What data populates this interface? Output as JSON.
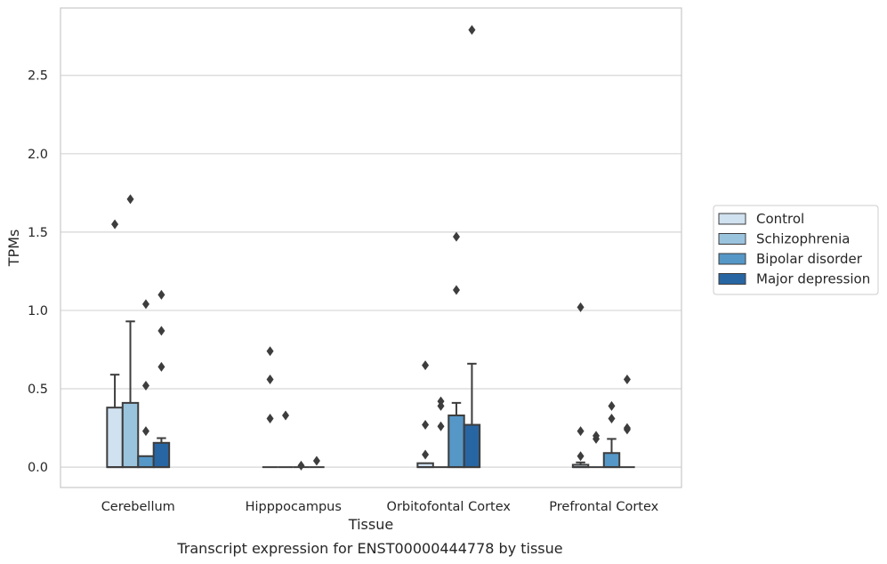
{
  "caption": "Transcript expression for ENST00000444778 by tissue",
  "chart_data": {
    "type": "box",
    "title": "",
    "xlabel": "Tissue",
    "ylabel": "TPMs",
    "ylim": [
      -0.13,
      2.93
    ],
    "yticks": [
      "0.0",
      "0.5",
      "1.0",
      "1.5",
      "2.0",
      "2.5"
    ],
    "ytick_values": [
      0.0,
      0.5,
      1.0,
      1.5,
      2.0,
      2.5
    ],
    "grid": "horizontal",
    "legend_position": "right",
    "categories": [
      "Cerebellum",
      "Hipppocampus",
      "Orbitofontal Cortex",
      "Prefrontal Cortex"
    ],
    "series": [
      {
        "name": "Control",
        "color": "#d0e1f0",
        "boxes": [
          {
            "q1": 0.0,
            "median": 0.0,
            "q3": 0.38,
            "whisker_low": 0.0,
            "whisker_high": 0.59,
            "outliers": [
              1.55
            ]
          },
          {
            "q1": 0.0,
            "median": 0.0,
            "q3": 0.0,
            "whisker_low": 0.0,
            "whisker_high": 0.0,
            "outliers": [
              0.31,
              0.56,
              0.74
            ]
          },
          {
            "q1": 0.0,
            "median": 0.0,
            "q3": 0.025,
            "whisker_low": 0.0,
            "whisker_high": 0.025,
            "outliers": [
              0.08,
              0.27,
              0.65
            ]
          },
          {
            "q1": 0.0,
            "median": 0.0,
            "q3": 0.015,
            "whisker_low": 0.0,
            "whisker_high": 0.03,
            "outliers": [
              0.07,
              0.23,
              1.02
            ]
          }
        ]
      },
      {
        "name": "Schizophrenia",
        "color": "#9ac3de",
        "boxes": [
          {
            "q1": 0.0,
            "median": 0.0,
            "q3": 0.41,
            "whisker_low": 0.0,
            "whisker_high": 0.93,
            "outliers": [
              1.71
            ]
          },
          {
            "q1": 0.0,
            "median": 0.0,
            "q3": 0.0,
            "whisker_low": 0.0,
            "whisker_high": 0.0,
            "outliers": [
              0.33
            ]
          },
          {
            "q1": 0.0,
            "median": 0.0,
            "q3": 0.0,
            "whisker_low": 0.0,
            "whisker_high": 0.0,
            "outliers": [
              0.26,
              0.39,
              0.42
            ]
          },
          {
            "q1": 0.0,
            "median": 0.0,
            "q3": 0.0,
            "whisker_low": 0.0,
            "whisker_high": 0.0,
            "outliers": [
              0.18,
              0.2
            ]
          }
        ]
      },
      {
        "name": "Bipolar disorder",
        "color": "#5597c7",
        "boxes": [
          {
            "q1": 0.0,
            "median": 0.0,
            "q3": 0.07,
            "whisker_low": 0.0,
            "whisker_high": 0.07,
            "outliers": [
              0.23,
              0.52,
              1.04
            ]
          },
          {
            "q1": 0.0,
            "median": 0.0,
            "q3": 0.0,
            "whisker_low": 0.0,
            "whisker_high": 0.0,
            "outliers": [
              0.01
            ]
          },
          {
            "q1": 0.0,
            "median": 0.0,
            "q3": 0.33,
            "whisker_low": 0.0,
            "whisker_high": 0.41,
            "outliers": [
              1.13,
              1.47
            ]
          },
          {
            "q1": 0.0,
            "median": 0.0,
            "q3": 0.09,
            "whisker_low": 0.0,
            "whisker_high": 0.18,
            "outliers": [
              0.31,
              0.39
            ]
          }
        ]
      },
      {
        "name": "Major depression",
        "color": "#2866a3",
        "boxes": [
          {
            "q1": 0.0,
            "median": 0.0,
            "q3": 0.155,
            "whisker_low": 0.0,
            "whisker_high": 0.185,
            "outliers": [
              0.64,
              0.87,
              1.1
            ]
          },
          {
            "q1": 0.0,
            "median": 0.0,
            "q3": 0.0,
            "whisker_low": 0.0,
            "whisker_high": 0.0,
            "outliers": [
              0.04
            ]
          },
          {
            "q1": 0.0,
            "median": 0.0,
            "q3": 0.27,
            "whisker_low": 0.0,
            "whisker_high": 0.66,
            "outliers": [
              2.79
            ]
          },
          {
            "q1": 0.0,
            "median": 0.0,
            "q3": 0.0,
            "whisker_low": 0.0,
            "whisker_high": 0.0,
            "outliers": [
              0.24,
              0.25,
              0.56
            ]
          }
        ]
      }
    ]
  }
}
